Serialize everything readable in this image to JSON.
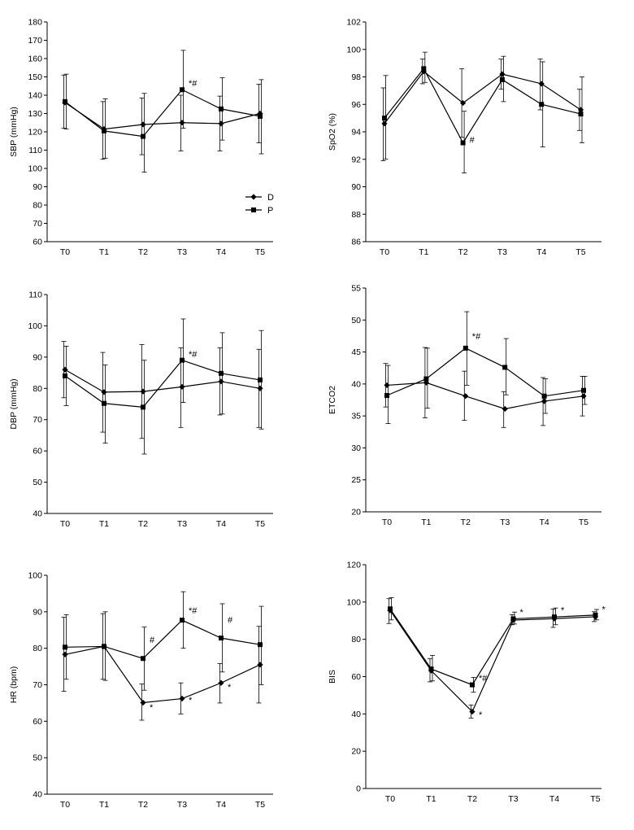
{
  "legend": {
    "entries": [
      {
        "label": "D",
        "marker": "diamond"
      },
      {
        "label": "P",
        "marker": "square"
      }
    ]
  },
  "chart_data": [
    {
      "type": "line",
      "ylabel": "SBP (mmHg)",
      "categories": [
        "T0",
        "T1",
        "T2",
        "T3",
        "T4",
        "T5"
      ],
      "ylim": [
        60,
        180
      ],
      "yticks": [
        60,
        70,
        80,
        90,
        100,
        110,
        120,
        130,
        140,
        150,
        160,
        170,
        180
      ],
      "series": [
        {
          "name": "D",
          "values": [
            136,
            121.5,
            124,
            125,
            124.5,
            130
          ],
          "err_low": [
            122,
            105,
            107.5,
            109.5,
            109.5,
            114
          ],
          "err_high": [
            151,
            136.5,
            138.5,
            140,
            139.5,
            146
          ]
        },
        {
          "name": "P",
          "values": [
            136.5,
            120.5,
            117.5,
            143,
            132.5,
            128.5
          ],
          "err_low": [
            121.5,
            105.5,
            98,
            122,
            115.5,
            108
          ],
          "err_high": [
            151.5,
            138,
            141,
            164.5,
            149.5,
            148.5
          ]
        }
      ],
      "annotations": [
        {
          "text": "*#",
          "x": "T3",
          "y": 145
        }
      ]
    },
    {
      "type": "line",
      "ylabel": "SpO2 (%)",
      "categories": [
        "T0",
        "T1",
        "T2",
        "T3",
        "T4",
        "T5"
      ],
      "ylim": [
        86,
        102
      ],
      "yticks": [
        86,
        88,
        90,
        92,
        94,
        96,
        98,
        100,
        102
      ],
      "series": [
        {
          "name": "D",
          "values": [
            94.6,
            98.4,
            96.1,
            98.2,
            97.5,
            95.6
          ],
          "err_low": [
            91.9,
            97.5,
            93.6,
            97.1,
            95.6,
            94.1
          ],
          "err_high": [
            97.2,
            99.3,
            98.6,
            99.3,
            99.3,
            97.1
          ]
        },
        {
          "name": "P",
          "values": [
            95.0,
            98.6,
            93.2,
            97.8,
            96.0,
            95.3
          ],
          "err_low": [
            92.0,
            97.6,
            91.0,
            96.2,
            92.9,
            93.2
          ],
          "err_high": [
            98.1,
            99.8,
            95.5,
            99.5,
            99.1,
            98.0
          ]
        }
      ],
      "annotations": [
        {
          "text": "#",
          "x": "T2",
          "y": 93.2
        }
      ]
    },
    {
      "type": "line",
      "ylabel": "DBP (mmHg)",
      "categories": [
        "T0",
        "T1",
        "T2",
        "T3",
        "T4",
        "T5"
      ],
      "ylim": [
        40,
        110
      ],
      "yticks": [
        40,
        50,
        60,
        70,
        80,
        90,
        100,
        110
      ],
      "series": [
        {
          "name": "D",
          "values": [
            86,
            78.8,
            79,
            80.5,
            82.2,
            80
          ],
          "err_low": [
            77,
            66,
            64,
            67.5,
            71.5,
            67.5
          ],
          "err_high": [
            95,
            91.5,
            94,
            93,
            93,
            92.5
          ]
        },
        {
          "name": "P",
          "values": [
            84,
            75.2,
            74,
            89,
            84.8,
            82.7
          ],
          "err_low": [
            74.5,
            62.5,
            59,
            75.5,
            71.8,
            67
          ],
          "err_high": [
            93.5,
            87.5,
            89,
            102.2,
            97.8,
            98.5
          ]
        }
      ],
      "annotations": [
        {
          "text": "*#",
          "x": "T3",
          "y": 90
        }
      ]
    },
    {
      "type": "line",
      "ylabel": "ETCO2",
      "categories": [
        "T0",
        "T1",
        "T2",
        "T3",
        "T4",
        "T5"
      ],
      "ylim": [
        20,
        55
      ],
      "yticks": [
        20,
        25,
        30,
        35,
        40,
        45,
        50,
        55
      ],
      "series": [
        {
          "name": "D",
          "values": [
            39.8,
            40.2,
            38.1,
            36.1,
            37.3,
            38.1
          ],
          "err_low": [
            36.4,
            34.7,
            34.3,
            33.2,
            33.5,
            35
          ],
          "err_high": [
            43.2,
            45.7,
            42,
            38.8,
            41,
            41.2
          ]
        },
        {
          "name": "P",
          "values": [
            38.2,
            40.8,
            45.6,
            42.6,
            38.1,
            39
          ],
          "err_low": [
            33.8,
            36.2,
            39.8,
            38.3,
            35.4,
            36.8
          ],
          "err_high": [
            42.9,
            45.6,
            51.3,
            47.1,
            40.8,
            41.2
          ]
        }
      ],
      "annotations": [
        {
          "text": "*#",
          "x": "T2",
          "y": 47
        }
      ]
    },
    {
      "type": "line",
      "ylabel": "HR (bpm)",
      "categories": [
        "T0",
        "T1",
        "T2",
        "T3",
        "T4",
        "T5"
      ],
      "ylim": [
        40,
        100
      ],
      "yticks": [
        40,
        50,
        60,
        70,
        80,
        90,
        100
      ],
      "series": [
        {
          "name": "D",
          "values": [
            78.3,
            80.5,
            65.1,
            66.2,
            70.5,
            75.5
          ],
          "err_low": [
            68.2,
            71.5,
            60.3,
            62,
            65,
            65
          ],
          "err_high": [
            88.5,
            89.5,
            70.2,
            70.5,
            75.8,
            86
          ]
        },
        {
          "name": "P",
          "values": [
            80.3,
            80.5,
            77.2,
            87.7,
            82.8,
            81
          ],
          "err_low": [
            71.5,
            71.2,
            68.5,
            80,
            73.5,
            70
          ],
          "err_high": [
            89.2,
            90,
            85.8,
            95.5,
            92.2,
            91.5
          ]
        }
      ],
      "annotations": [
        {
          "text": "#",
          "x": "T2",
          "y": 81.5
        },
        {
          "text": "*#",
          "x": "T3",
          "y": 89.5
        },
        {
          "text": "#",
          "x": "T4",
          "y": 87
        },
        {
          "text": "*",
          "x": "T2",
          "y": 63
        },
        {
          "text": "*",
          "x": "T3",
          "y": 65
        },
        {
          "text": "*",
          "x": "T4",
          "y": 68.5
        }
      ]
    },
    {
      "type": "line",
      "ylabel": "BIS",
      "categories": [
        "T0",
        "T1",
        "T2",
        "T3",
        "T4",
        "T5"
      ],
      "ylim": [
        0,
        120
      ],
      "yticks": [
        0,
        20,
        40,
        60,
        80,
        100,
        120
      ],
      "series": [
        {
          "name": "D",
          "values": [
            95.5,
            63.2,
            41.2,
            90.3,
            91.1,
            92.1
          ],
          "err_low": [
            88.5,
            57.2,
            37.8,
            87.8,
            86.4,
            89.5
          ],
          "err_high": [
            101.8,
            69.7,
            44.8,
            93.2,
            96.2,
            94.8
          ]
        },
        {
          "name": "P",
          "values": [
            96.3,
            64.1,
            55.6,
            91.0,
            92.0,
            93.0
          ],
          "err_low": [
            90.4,
            57.7,
            51.6,
            88.2,
            87.8,
            90.4
          ],
          "err_high": [
            102.3,
            71.4,
            59.6,
            94.6,
            96.8,
            96.0
          ]
        }
      ],
      "annotations": [
        {
          "text": "*#",
          "x": "T2",
          "y": 57.5
        },
        {
          "text": "*",
          "x": "T2",
          "y": 38
        },
        {
          "text": "*",
          "x": "T3",
          "y": 93
        },
        {
          "text": "*",
          "x": "T4",
          "y": 94
        },
        {
          "text": "*",
          "x": "T5",
          "y": 94.5
        }
      ]
    }
  ]
}
